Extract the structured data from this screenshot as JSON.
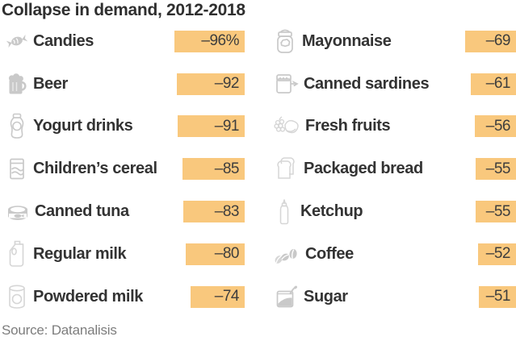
{
  "title": "Collapse in demand, 2012-2018",
  "source": "Source: Datanalisis",
  "colors": {
    "bar_fill": "#f9c87d",
    "bar_text": "#3d3d3d",
    "label_text": "#333333",
    "icon_gray": "#c9c9c9",
    "source_text": "#7d7d7d"
  },
  "chart_data": {
    "type": "bar",
    "title": "Collapse in demand, 2012-2018",
    "unit": "%",
    "orientation": "horizontal-right-aligned",
    "layout": "two columns, bar width proportional to magnitude",
    "source": "Source: Datanalisis",
    "categories": [
      "Candies",
      "Beer",
      "Yogurt drinks",
      "Children’s cereal",
      "Canned tuna",
      "Regular milk",
      "Powdered milk",
      "Mayonnaise",
      "Canned sardines",
      "Fresh fruits",
      "Packaged bread",
      "Ketchup",
      "Coffee",
      "Sugar"
    ],
    "values": [
      -96,
      -92,
      -91,
      -85,
      -83,
      -80,
      -74,
      -69,
      -61,
      -56,
      -55,
      -55,
      -52,
      -51
    ],
    "columns": [
      {
        "items": [
          {
            "label": "Candies",
            "icon": "candy-icon",
            "value": -96,
            "display": "–96%"
          },
          {
            "label": "Beer",
            "icon": "beer-mug-icon",
            "value": -92,
            "display": "–92"
          },
          {
            "label": "Yogurt drinks",
            "icon": "yogurt-bottle-icon",
            "value": -91,
            "display": "–91"
          },
          {
            "label": "Children’s cereal",
            "icon": "cereal-box-icon",
            "value": -85,
            "display": "–85"
          },
          {
            "label": "Canned tuna",
            "icon": "tuna-can-icon",
            "value": -83,
            "display": "–83"
          },
          {
            "label": "Regular milk",
            "icon": "milk-jug-icon",
            "value": -80,
            "display": "–80"
          },
          {
            "label": "Powdered milk",
            "icon": "powdered-milk-can-icon",
            "value": -74,
            "display": "–74"
          }
        ]
      },
      {
        "items": [
          {
            "label": "Mayonnaise",
            "icon": "mayonnaise-jar-icon",
            "value": -69,
            "display": "–69"
          },
          {
            "label": "Canned sardines",
            "icon": "sardine-can-icon",
            "value": -61,
            "display": "–61"
          },
          {
            "label": "Fresh fruits",
            "icon": "fresh-fruits-icon",
            "value": -56,
            "display": "–56"
          },
          {
            "label": "Packaged bread",
            "icon": "bread-icon",
            "value": -55,
            "display": "–55"
          },
          {
            "label": "Ketchup",
            "icon": "ketchup-bottle-icon",
            "value": -55,
            "display": "–55"
          },
          {
            "label": "Coffee",
            "icon": "coffee-beans-icon",
            "value": -52,
            "display": "–52"
          },
          {
            "label": "Sugar",
            "icon": "sugar-bag-icon",
            "value": -51,
            "display": "–51"
          }
        ]
      }
    ]
  }
}
